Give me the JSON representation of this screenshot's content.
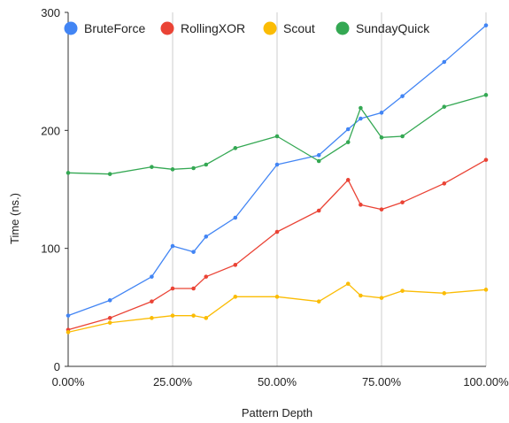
{
  "chart_data": {
    "type": "line",
    "title": "",
    "xlabel": "Pattern Depth",
    "ylabel": "Time (ns.)",
    "xlim": [
      0,
      1
    ],
    "ylim": [
      0,
      300
    ],
    "x_ticks": [
      0,
      0.25,
      0.5,
      0.75,
      1.0
    ],
    "x_tick_labels": [
      "0.00%",
      "25.00%",
      "50.00%",
      "75.00%",
      "100.00%"
    ],
    "y_ticks": [
      0,
      100,
      200,
      300
    ],
    "y_tick_labels": [
      "0",
      "100",
      "200",
      "300"
    ],
    "grid": "vertical",
    "legend_position": "top",
    "x": [
      0,
      0.1,
      0.2,
      0.25,
      0.3,
      0.33,
      0.4,
      0.5,
      0.6,
      0.67,
      0.7,
      0.75,
      0.8,
      0.9,
      1.0
    ],
    "series": [
      {
        "name": "BruteForce",
        "color": "#4285F4",
        "values": [
          43,
          56,
          76,
          102,
          97,
          110,
          126,
          171,
          179,
          201,
          210,
          215,
          229,
          258,
          289
        ]
      },
      {
        "name": "RollingXOR",
        "color": "#EA4335",
        "values": [
          31,
          41,
          55,
          66,
          66,
          76,
          86,
          114,
          132,
          158,
          137,
          133,
          139,
          155,
          175
        ]
      },
      {
        "name": "Scout",
        "color": "#FBBC04",
        "values": [
          29,
          37,
          41,
          43,
          43,
          41,
          59,
          59,
          55,
          70,
          60,
          58,
          64,
          62,
          65
        ]
      },
      {
        "name": "SundayQuick",
        "color": "#34A853",
        "values": [
          164,
          163,
          169,
          167,
          168,
          171,
          185,
          195,
          174,
          190,
          219,
          194,
          195,
          220,
          230
        ]
      }
    ]
  }
}
